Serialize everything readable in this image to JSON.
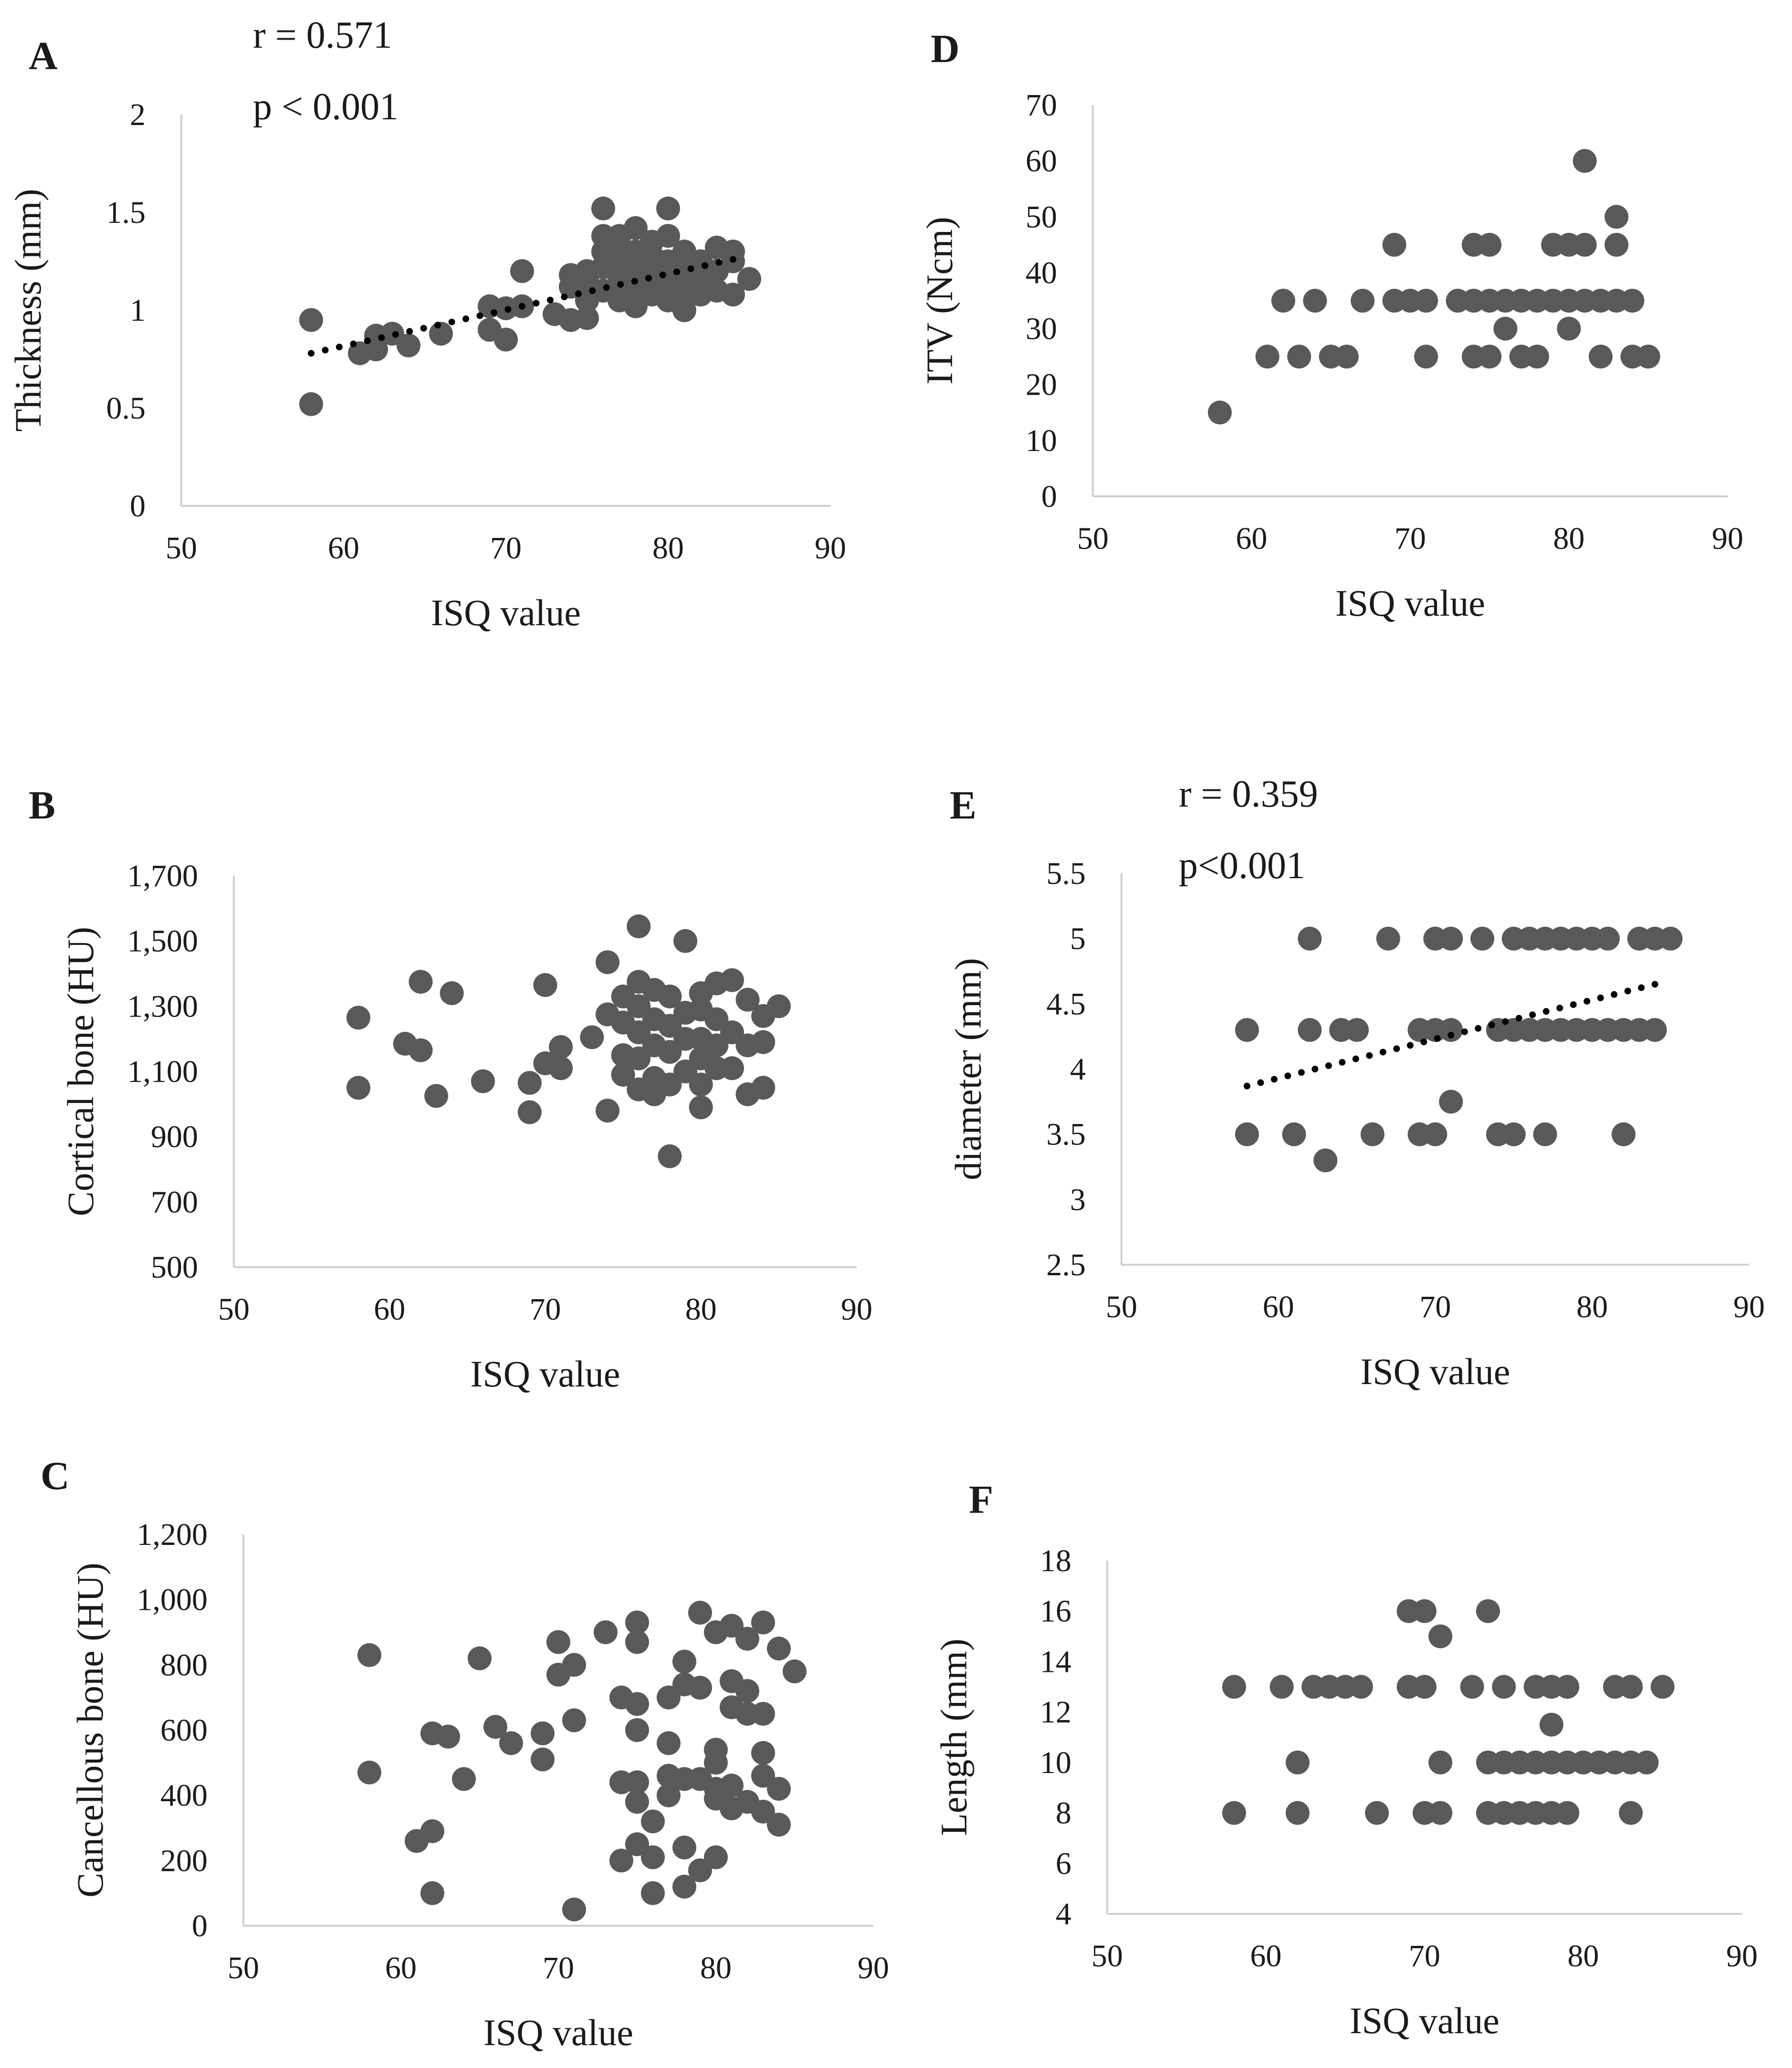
{
  "chart_data": [
    {
      "panel": "A",
      "type": "scatter",
      "xlabel": "ISQ value",
      "ylabel": "Thickness (mm)",
      "xlim": [
        50,
        90
      ],
      "ylim": [
        0,
        2
      ],
      "xticks": [
        "50",
        "60",
        "70",
        "80",
        "90"
      ],
      "yticks": [
        "0",
        "0.5",
        "1",
        "1.5",
        "2"
      ],
      "trendline": true,
      "stats": [
        "r = 0.571",
        "p < 0.001"
      ],
      "points": [
        [
          58,
          0.52
        ],
        [
          58,
          0.95
        ],
        [
          61,
          0.78
        ],
        [
          62,
          0.8
        ],
        [
          62,
          0.87
        ],
        [
          63,
          0.88
        ],
        [
          64,
          0.82
        ],
        [
          66,
          0.88
        ],
        [
          69,
          0.9
        ],
        [
          69,
          1.02
        ],
        [
          70,
          0.85
        ],
        [
          70,
          1.01
        ],
        [
          71,
          1.2
        ],
        [
          71,
          1.02
        ],
        [
          73,
          0.98
        ],
        [
          74,
          0.95
        ],
        [
          74,
          1.12
        ],
        [
          74,
          1.18
        ],
        [
          75,
          0.96
        ],
        [
          75,
          1.05
        ],
        [
          75,
          1.15
        ],
        [
          75,
          1.2
        ],
        [
          76,
          1.52
        ],
        [
          76,
          1.38
        ],
        [
          76,
          1.3
        ],
        [
          76,
          1.1
        ],
        [
          76,
          1.22
        ],
        [
          77,
          1.05
        ],
        [
          77,
          1.15
        ],
        [
          77,
          1.25
        ],
        [
          77,
          1.32
        ],
        [
          77,
          1.38
        ],
        [
          78,
          1.02
        ],
        [
          78,
          1.12
        ],
        [
          78,
          1.2
        ],
        [
          78,
          1.3
        ],
        [
          78,
          1.42
        ],
        [
          79,
          1.08
        ],
        [
          79,
          1.18
        ],
        [
          79,
          1.28
        ],
        [
          79,
          1.35
        ],
        [
          80,
          1.52
        ],
        [
          80,
          1.05
        ],
        [
          80,
          1.15
        ],
        [
          80,
          1.25
        ],
        [
          80,
          1.38
        ],
        [
          81,
          1.0
        ],
        [
          81,
          1.1
        ],
        [
          81,
          1.2
        ],
        [
          81,
          1.3
        ],
        [
          82,
          1.08
        ],
        [
          82,
          1.18
        ],
        [
          82,
          1.25
        ],
        [
          83,
          1.32
        ],
        [
          83,
          1.2
        ],
        [
          83,
          1.1
        ],
        [
          84,
          1.08
        ],
        [
          84,
          1.25
        ],
        [
          84,
          1.3
        ],
        [
          85,
          1.16
        ]
      ],
      "fit": [
        [
          58,
          0.78
        ],
        [
          84,
          1.26
        ]
      ]
    },
    {
      "panel": "B",
      "type": "scatter",
      "xlabel": "ISQ value",
      "ylabel": "Cortical bone (HU)",
      "xlim": [
        50,
        90
      ],
      "ylim": [
        500,
        1700
      ],
      "xticks": [
        "50",
        "60",
        "70",
        "80",
        "90"
      ],
      "yticks": [
        "500",
        "700",
        "900",
        "1,100",
        "1,300",
        "1,500",
        "1,700"
      ],
      "trendline": false,
      "points": [
        [
          58,
          1265
        ],
        [
          58,
          1050
        ],
        [
          61,
          1185
        ],
        [
          62,
          1375
        ],
        [
          62,
          1165
        ],
        [
          63,
          1025
        ],
        [
          64,
          1340
        ],
        [
          66,
          1070
        ],
        [
          69,
          1065
        ],
        [
          69,
          975
        ],
        [
          70,
          1365
        ],
        [
          70,
          1125
        ],
        [
          71,
          1175
        ],
        [
          71,
          1110
        ],
        [
          73,
          1205
        ],
        [
          74,
          1435
        ],
        [
          74,
          980
        ],
        [
          74,
          1275
        ],
        [
          75,
          1330
        ],
        [
          75,
          1250
        ],
        [
          75,
          1150
        ],
        [
          75,
          1090
        ],
        [
          76,
          1545
        ],
        [
          76,
          1375
        ],
        [
          76,
          1300
        ],
        [
          76,
          1220
        ],
        [
          76,
          1140
        ],
        [
          76,
          1045
        ],
        [
          77,
          1350
        ],
        [
          77,
          1260
        ],
        [
          77,
          1180
        ],
        [
          77,
          1080
        ],
        [
          77,
          1030
        ],
        [
          78,
          840
        ],
        [
          78,
          1330
        ],
        [
          78,
          1240
        ],
        [
          78,
          1160
        ],
        [
          78,
          1060
        ],
        [
          79,
          1500
        ],
        [
          79,
          1100
        ],
        [
          79,
          1200
        ],
        [
          79,
          1280
        ],
        [
          80,
          1340
        ],
        [
          80,
          990
        ],
        [
          80,
          1060
        ],
        [
          80,
          1140
        ],
        [
          80,
          1200
        ],
        [
          80,
          1290
        ],
        [
          81,
          1370
        ],
        [
          81,
          1110
        ],
        [
          81,
          1180
        ],
        [
          81,
          1260
        ],
        [
          82,
          1380
        ],
        [
          82,
          1110
        ],
        [
          82,
          1220
        ],
        [
          83,
          1320
        ],
        [
          83,
          1030
        ],
        [
          83,
          1180
        ],
        [
          84,
          1270
        ],
        [
          84,
          1050
        ],
        [
          84,
          1190
        ],
        [
          85,
          1300
        ]
      ]
    },
    {
      "panel": "C",
      "type": "scatter",
      "xlabel": "ISQ value",
      "ylabel": "Cancellous bone (HU)",
      "xlim": [
        50,
        90
      ],
      "ylim": [
        0,
        1200
      ],
      "xticks": [
        "50",
        "60",
        "70",
        "80",
        "90"
      ],
      "yticks": [
        "0",
        "200",
        "400",
        "600",
        "800",
        "1,000",
        "1,200"
      ],
      "trendline": false,
      "points": [
        [
          58,
          830
        ],
        [
          58,
          470
        ],
        [
          61,
          260
        ],
        [
          62,
          290
        ],
        [
          62,
          590
        ],
        [
          62,
          100
        ],
        [
          63,
          580
        ],
        [
          64,
          450
        ],
        [
          65,
          820
        ],
        [
          66,
          610
        ],
        [
          67,
          560
        ],
        [
          69,
          590
        ],
        [
          69,
          510
        ],
        [
          70,
          870
        ],
        [
          70,
          770
        ],
        [
          71,
          800
        ],
        [
          71,
          630
        ],
        [
          71,
          50
        ],
        [
          73,
          900
        ],
        [
          74,
          700
        ],
        [
          74,
          440
        ],
        [
          74,
          200
        ],
        [
          75,
          930
        ],
        [
          75,
          870
        ],
        [
          75,
          680
        ],
        [
          75,
          600
        ],
        [
          75,
          440
        ],
        [
          75,
          380
        ],
        [
          75,
          250
        ],
        [
          76,
          320
        ],
        [
          76,
          210
        ],
        [
          76,
          100
        ],
        [
          77,
          700
        ],
        [
          77,
          560
        ],
        [
          77,
          460
        ],
        [
          77,
          400
        ],
        [
          78,
          810
        ],
        [
          78,
          740
        ],
        [
          78,
          450
        ],
        [
          78,
          240
        ],
        [
          78,
          120
        ],
        [
          79,
          960
        ],
        [
          79,
          730
        ],
        [
          79,
          450
        ],
        [
          79,
          170
        ],
        [
          80,
          900
        ],
        [
          80,
          540
        ],
        [
          80,
          500
        ],
        [
          80,
          420
        ],
        [
          80,
          390
        ],
        [
          80,
          210
        ],
        [
          81,
          920
        ],
        [
          81,
          750
        ],
        [
          81,
          670
        ],
        [
          81,
          430
        ],
        [
          81,
          360
        ],
        [
          82,
          880
        ],
        [
          82,
          720
        ],
        [
          82,
          650
        ],
        [
          82,
          380
        ],
        [
          83,
          930
        ],
        [
          83,
          650
        ],
        [
          83,
          530
        ],
        [
          83,
          460
        ],
        [
          83,
          350
        ],
        [
          84,
          850
        ],
        [
          84,
          420
        ],
        [
          84,
          310
        ],
        [
          85,
          780
        ]
      ]
    },
    {
      "panel": "D",
      "type": "scatter",
      "xlabel": "ISQ value",
      "ylabel": "ITV (Ncm)",
      "xlim": [
        50,
        90
      ],
      "ylim": [
        0,
        70
      ],
      "xticks": [
        "50",
        "60",
        "70",
        "80",
        "90"
      ],
      "yticks": [
        "0",
        "10",
        "20",
        "30",
        "40",
        "50",
        "60",
        "70"
      ],
      "trendline": false,
      "points": [
        [
          58,
          15
        ],
        [
          61,
          25
        ],
        [
          62,
          35
        ],
        [
          63,
          25
        ],
        [
          64,
          35
        ],
        [
          65,
          25
        ],
        [
          66,
          25
        ],
        [
          67,
          35
        ],
        [
          69,
          45
        ],
        [
          69,
          35
        ],
        [
          70,
          35
        ],
        [
          71,
          35
        ],
        [
          71,
          25
        ],
        [
          73,
          35
        ],
        [
          74,
          45
        ],
        [
          74,
          35
        ],
        [
          74,
          25
        ],
        [
          75,
          45
        ],
        [
          75,
          35
        ],
        [
          75,
          25
        ],
        [
          76,
          35
        ],
        [
          76,
          30
        ],
        [
          77,
          35
        ],
        [
          77,
          25
        ],
        [
          78,
          35
        ],
        [
          78,
          25
        ],
        [
          79,
          45
        ],
        [
          79,
          35
        ],
        [
          80,
          45
        ],
        [
          80,
          35
        ],
        [
          80,
          30
        ],
        [
          81,
          60
        ],
        [
          81,
          45
        ],
        [
          81,
          35
        ],
        [
          82,
          35
        ],
        [
          82,
          25
        ],
        [
          83,
          50
        ],
        [
          83,
          45
        ],
        [
          83,
          35
        ],
        [
          84,
          35
        ],
        [
          84,
          25
        ],
        [
          85,
          25
        ]
      ]
    },
    {
      "panel": "E",
      "type": "scatter",
      "xlabel": "ISQ value",
      "ylabel": "diameter (mm)",
      "xlim": [
        50,
        90
      ],
      "ylim": [
        2.5,
        5.5
      ],
      "xticks": [
        "50",
        "60",
        "70",
        "80",
        "90"
      ],
      "yticks": [
        "2.5",
        "3",
        "3.5",
        "4",
        "4.5",
        "5",
        "5.5"
      ],
      "trendline": true,
      "stats": [
        "r = 0.359",
        "p<0.001"
      ],
      "points": [
        [
          58,
          4.3
        ],
        [
          58,
          3.5
        ],
        [
          61,
          3.5
        ],
        [
          62,
          5.0
        ],
        [
          62,
          4.3
        ],
        [
          63,
          3.3
        ],
        [
          64,
          4.3
        ],
        [
          65,
          4.3
        ],
        [
          66,
          3.5
        ],
        [
          67,
          5.0
        ],
        [
          69,
          4.3
        ],
        [
          69,
          3.5
        ],
        [
          70,
          5.0
        ],
        [
          70,
          4.3
        ],
        [
          70,
          3.5
        ],
        [
          71,
          5.0
        ],
        [
          71,
          4.3
        ],
        [
          71,
          3.75
        ],
        [
          73,
          5.0
        ],
        [
          74,
          4.3
        ],
        [
          74,
          3.5
        ],
        [
          75,
          5.0
        ],
        [
          75,
          4.3
        ],
        [
          75,
          3.5
        ],
        [
          76,
          5.0
        ],
        [
          76,
          4.3
        ],
        [
          77,
          5.0
        ],
        [
          77,
          4.3
        ],
        [
          77,
          3.5
        ],
        [
          78,
          5.0
        ],
        [
          78,
          4.3
        ],
        [
          79,
          5.0
        ],
        [
          79,
          4.3
        ],
        [
          80,
          5.0
        ],
        [
          80,
          4.3
        ],
        [
          81,
          5.0
        ],
        [
          81,
          4.3
        ],
        [
          82,
          4.3
        ],
        [
          82,
          3.5
        ],
        [
          83,
          5.0
        ],
        [
          83,
          4.3
        ],
        [
          84,
          5.0
        ],
        [
          84,
          4.3
        ],
        [
          85,
          5.0
        ]
      ],
      "fit": [
        [
          58,
          3.87
        ],
        [
          84,
          4.65
        ]
      ]
    },
    {
      "panel": "F",
      "type": "scatter",
      "xlabel": "ISQ value",
      "ylabel": "Length (mm)",
      "xlim": [
        50,
        90
      ],
      "ylim": [
        4,
        18
      ],
      "xticks": [
        "50",
        "60",
        "70",
        "80",
        "90"
      ],
      "yticks": [
        "4",
        "6",
        "8",
        "10",
        "12",
        "14",
        "16",
        "18"
      ],
      "trendline": false,
      "points": [
        [
          58,
          13
        ],
        [
          58,
          8
        ],
        [
          61,
          13
        ],
        [
          62,
          10
        ],
        [
          62,
          8
        ],
        [
          63,
          13
        ],
        [
          64,
          13
        ],
        [
          65,
          13
        ],
        [
          66,
          13
        ],
        [
          67,
          8
        ],
        [
          69,
          16
        ],
        [
          69,
          13
        ],
        [
          70,
          16
        ],
        [
          70,
          13
        ],
        [
          70,
          8
        ],
        [
          71,
          15
        ],
        [
          71,
          10
        ],
        [
          71,
          8
        ],
        [
          73,
          13
        ],
        [
          74,
          16
        ],
        [
          74,
          10
        ],
        [
          74,
          8
        ],
        [
          75,
          13
        ],
        [
          75,
          10
        ],
        [
          75,
          8
        ],
        [
          76,
          10
        ],
        [
          76,
          8
        ],
        [
          77,
          13
        ],
        [
          77,
          10
        ],
        [
          77,
          8
        ],
        [
          78,
          13
        ],
        [
          78,
          11.5
        ],
        [
          78,
          10
        ],
        [
          78,
          8
        ],
        [
          79,
          13
        ],
        [
          79,
          10
        ],
        [
          79,
          8
        ],
        [
          80,
          10
        ],
        [
          81,
          10
        ],
        [
          82,
          13
        ],
        [
          82,
          10
        ],
        [
          83,
          13
        ],
        [
          83,
          10
        ],
        [
          83,
          8
        ],
        [
          84,
          10
        ],
        [
          85,
          13
        ]
      ]
    }
  ]
}
